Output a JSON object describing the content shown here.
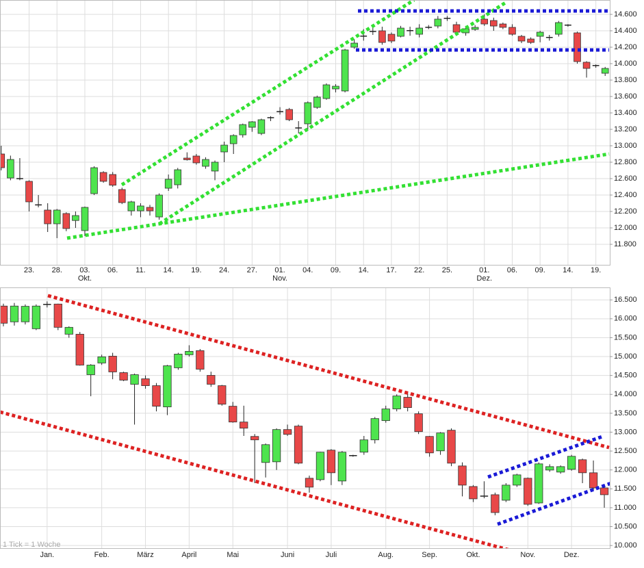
{
  "chart_data": [
    {
      "type": "candlestick",
      "categories": [
        null,
        null,
        null,
        "23.",
        null,
        null,
        "28.",
        null,
        null,
        "03.",
        null,
        null,
        "06.",
        null,
        null,
        "11.",
        null,
        null,
        "14.",
        null,
        null,
        "19.",
        null,
        null,
        "24.",
        null,
        null,
        "27.",
        null,
        null,
        "01.",
        null,
        null,
        "04.",
        null,
        null,
        "09.",
        null,
        null,
        "14.",
        null,
        null,
        "17.",
        null,
        null,
        "22.",
        null,
        null,
        "25.",
        null,
        null,
        null,
        "01.",
        null,
        null,
        "06.",
        null,
        null,
        "09.",
        null,
        null,
        "14.",
        null,
        null,
        "19.",
        null
      ],
      "categories2": [
        null,
        null,
        null,
        null,
        null,
        null,
        null,
        null,
        null,
        "Okt.",
        null,
        null,
        null,
        null,
        null,
        null,
        null,
        null,
        null,
        null,
        null,
        null,
        null,
        null,
        null,
        null,
        null,
        null,
        null,
        null,
        "Nov.",
        null,
        null,
        null,
        null,
        null,
        null,
        null,
        null,
        null,
        null,
        null,
        null,
        null,
        null,
        null,
        null,
        null,
        null,
        null,
        null,
        null,
        "Dez.",
        null,
        null,
        null,
        null,
        null,
        null,
        null,
        null,
        null,
        null,
        null,
        null,
        null
      ],
      "open": [
        12900,
        12608,
        12600,
        12567,
        12280,
        12217,
        12050,
        12175,
        12090,
        11967,
        12417,
        12675,
        12650,
        12467,
        12208,
        12208,
        12250,
        12133,
        12483,
        12525,
        12850,
        12875,
        12750,
        12692,
        12925,
        13025,
        13133,
        13225,
        13150,
        13340,
        13410,
        13442,
        13217,
        13267,
        13467,
        13575,
        13692,
        13667,
        14200,
        14330,
        14390,
        14400,
        14358,
        14333,
        14400,
        14358,
        14442,
        14458,
        14550,
        14475,
        14375,
        14417,
        14542,
        14525,
        14483,
        14442,
        14333,
        14300,
        14333,
        14317,
        14358,
        14467,
        14375,
        14017,
        13975,
        13883
      ],
      "high": [
        13000,
        12880,
        12850,
        12580,
        12400,
        12300,
        12230,
        12190,
        12200,
        12260,
        12750,
        12690,
        12680,
        12490,
        12330,
        12300,
        12280,
        12420,
        12650,
        12730,
        12920,
        12900,
        12860,
        12820,
        13050,
        13140,
        13270,
        13300,
        13330,
        13360,
        13470,
        13460,
        13300,
        13540,
        13610,
        13760,
        13750,
        14180,
        14300,
        14420,
        14450,
        14450,
        14380,
        14460,
        14450,
        14480,
        14470,
        14580,
        14580,
        14510,
        14460,
        14470,
        14600,
        14560,
        14500,
        14480,
        14350,
        14320,
        14400,
        14350,
        14520,
        14480,
        14390,
        14030,
        13990,
        13960
      ],
      "low": [
        12700,
        12580,
        12580,
        12200,
        12250,
        11950,
        11875,
        11960,
        12000,
        11900,
        12400,
        12550,
        12500,
        12290,
        12150,
        12130,
        12150,
        12100,
        12450,
        12480,
        12820,
        12770,
        12720,
        12580,
        12800,
        12900,
        13100,
        13170,
        13130,
        13300,
        13380,
        13300,
        13150,
        13200,
        13450,
        13560,
        13650,
        13650,
        14180,
        14280,
        14350,
        14230,
        14250,
        14320,
        14340,
        14320,
        14420,
        14430,
        14520,
        14360,
        14340,
        14400,
        14460,
        14400,
        14420,
        14340,
        14250,
        14240,
        14260,
        14280,
        14330,
        14450,
        14000,
        13830,
        13950,
        13850
      ],
      "close": [
        12733,
        12833,
        12590,
        12317,
        12270,
        12050,
        12217,
        11992,
        12150,
        12250,
        12733,
        12567,
        12520,
        12308,
        12317,
        12267,
        12208,
        12400,
        12592,
        12708,
        12830,
        12792,
        12833,
        12800,
        13008,
        13125,
        13258,
        13292,
        13317,
        13342,
        13416,
        13317,
        13215,
        13525,
        13592,
        13742,
        13725,
        14167,
        14250,
        14335,
        14392,
        14258,
        14275,
        14433,
        14402,
        14433,
        14440,
        14542,
        14552,
        14383,
        14425,
        14442,
        14483,
        14458,
        14442,
        14358,
        14275,
        14258,
        14383,
        14319,
        14500,
        14469,
        14025,
        13942,
        13977,
        13942
      ],
      "up_color": "#4ee44e",
      "down_color": "#e84848",
      "ylim": [
        11550,
        14775
      ],
      "yticks": [
        {
          "value": 11800,
          "label": "11.800"
        },
        {
          "value": 12000,
          "label": "12.000"
        },
        {
          "value": 12200,
          "label": "12.200"
        },
        {
          "value": 12400,
          "label": "12.400"
        },
        {
          "value": 12600,
          "label": "12.600"
        },
        {
          "value": 12800,
          "label": "12.800"
        },
        {
          "value": 13000,
          "label": "13.000"
        },
        {
          "value": 13200,
          "label": "13.200"
        },
        {
          "value": 13400,
          "label": "13.400"
        },
        {
          "value": 13600,
          "label": "13.600"
        },
        {
          "value": 13800,
          "label": "13.800"
        },
        {
          "value": 14000,
          "label": "14.000"
        },
        {
          "value": 14200,
          "label": "14.200"
        },
        {
          "value": 14400,
          "label": "14.400"
        },
        {
          "value": 14600,
          "label": "14.600"
        }
      ],
      "grid": true
    },
    {
      "type": "candlestick",
      "categories": [
        null,
        null,
        null,
        null,
        "Jan.",
        null,
        null,
        null,
        null,
        "Feb.",
        null,
        null,
        null,
        "März",
        null,
        null,
        null,
        "April",
        null,
        null,
        null,
        "Mai",
        null,
        null,
        null,
        null,
        "Juni",
        null,
        null,
        null,
        "Juli",
        null,
        null,
        null,
        null,
        "Aug.",
        null,
        null,
        null,
        "Sep.",
        null,
        null,
        null,
        "Okt.",
        null,
        null,
        null,
        null,
        "Nov.",
        null,
        null,
        null,
        "Dez.",
        null,
        null,
        null
      ],
      "open": [
        16337,
        15919,
        15920,
        15737,
        16380,
        16390,
        15592,
        15592,
        14521,
        14830,
        15011,
        14575,
        14267,
        14412,
        14230,
        13668,
        14703,
        15048,
        15157,
        14503,
        14230,
        13686,
        13268,
        12887,
        12197,
        12215,
        13069,
        13160,
        11780,
        11743,
        12524,
        11707,
        12379,
        12470,
        12796,
        13305,
        13614,
        13922,
        13486,
        12887,
        12506,
        13051,
        12106,
        11562,
        11307,
        11344,
        11198,
        11598,
        11780,
        11126,
        11997,
        11943,
        12016,
        12270,
        11925,
        11525
      ],
      "high": [
        16400,
        16420,
        16380,
        16380,
        16460,
        16400,
        15800,
        15650,
        14800,
        15050,
        15100,
        14600,
        14550,
        14500,
        14300,
        14780,
        15100,
        15300,
        15200,
        14600,
        14250,
        13800,
        13700,
        12950,
        12700,
        13100,
        13200,
        13200,
        11850,
        12480,
        12550,
        12500,
        12400,
        12900,
        13400,
        13700,
        14000,
        14050,
        13550,
        12900,
        13000,
        13100,
        12200,
        11600,
        11700,
        11400,
        11650,
        11900,
        11800,
        12200,
        12150,
        12120,
        12400,
        12300,
        12250,
        11550
      ],
      "low": [
        15800,
        15820,
        15850,
        15700,
        16300,
        15700,
        15500,
        14760,
        13950,
        14780,
        14400,
        14350,
        13200,
        14150,
        13550,
        13450,
        14650,
        15000,
        14600,
        14200,
        13700,
        13250,
        12900,
        11650,
        11800,
        12000,
        12900,
        12150,
        11400,
        11700,
        11600,
        11600,
        12350,
        12400,
        12700,
        13250,
        13550,
        13550,
        12950,
        12350,
        12400,
        12100,
        11300,
        11150,
        11250,
        10800,
        11150,
        11550,
        11050,
        11100,
        11950,
        11900,
        11980,
        11650,
        11450,
        11000
      ],
      "close": [
        15883,
        16337,
        16330,
        16337,
        16373,
        15774,
        15774,
        14775,
        14775,
        14993,
        14594,
        14376,
        14521,
        14230,
        13686,
        14757,
        15066,
        15139,
        14666,
        14267,
        13740,
        13268,
        13105,
        12796,
        12669,
        13069,
        12941,
        12179,
        11544,
        12470,
        11925,
        12470,
        12370,
        12796,
        13359,
        13614,
        13958,
        13650,
        13014,
        12451,
        12978,
        12179,
        11598,
        11235,
        11300,
        10872,
        11598,
        11870,
        11090,
        12161,
        12088,
        12088,
        12361,
        11925,
        11525,
        11344
      ],
      "up_color": "#4ee44e",
      "down_color": "#e84848",
      "ylim": [
        9930,
        16830
      ],
      "yticks": [
        {
          "value": 10000,
          "label": "10.000"
        },
        {
          "value": 10500,
          "label": "10.500"
        },
        {
          "value": 11000,
          "label": "11.000"
        },
        {
          "value": 11500,
          "label": "11.500"
        },
        {
          "value": 12000,
          "label": "12.000"
        },
        {
          "value": 12500,
          "label": "12.500"
        },
        {
          "value": 13000,
          "label": "13.000"
        },
        {
          "value": 13500,
          "label": "13.500"
        },
        {
          "value": 14000,
          "label": "14.000"
        },
        {
          "value": 14500,
          "label": "14.500"
        },
        {
          "value": 15000,
          "label": "15.000"
        },
        {
          "value": 15500,
          "label": "15.500"
        },
        {
          "value": 16000,
          "label": "16.000"
        },
        {
          "value": 16500,
          "label": "16.500"
        }
      ],
      "grid": true,
      "note": "1 Tick = 1 Woche"
    }
  ]
}
